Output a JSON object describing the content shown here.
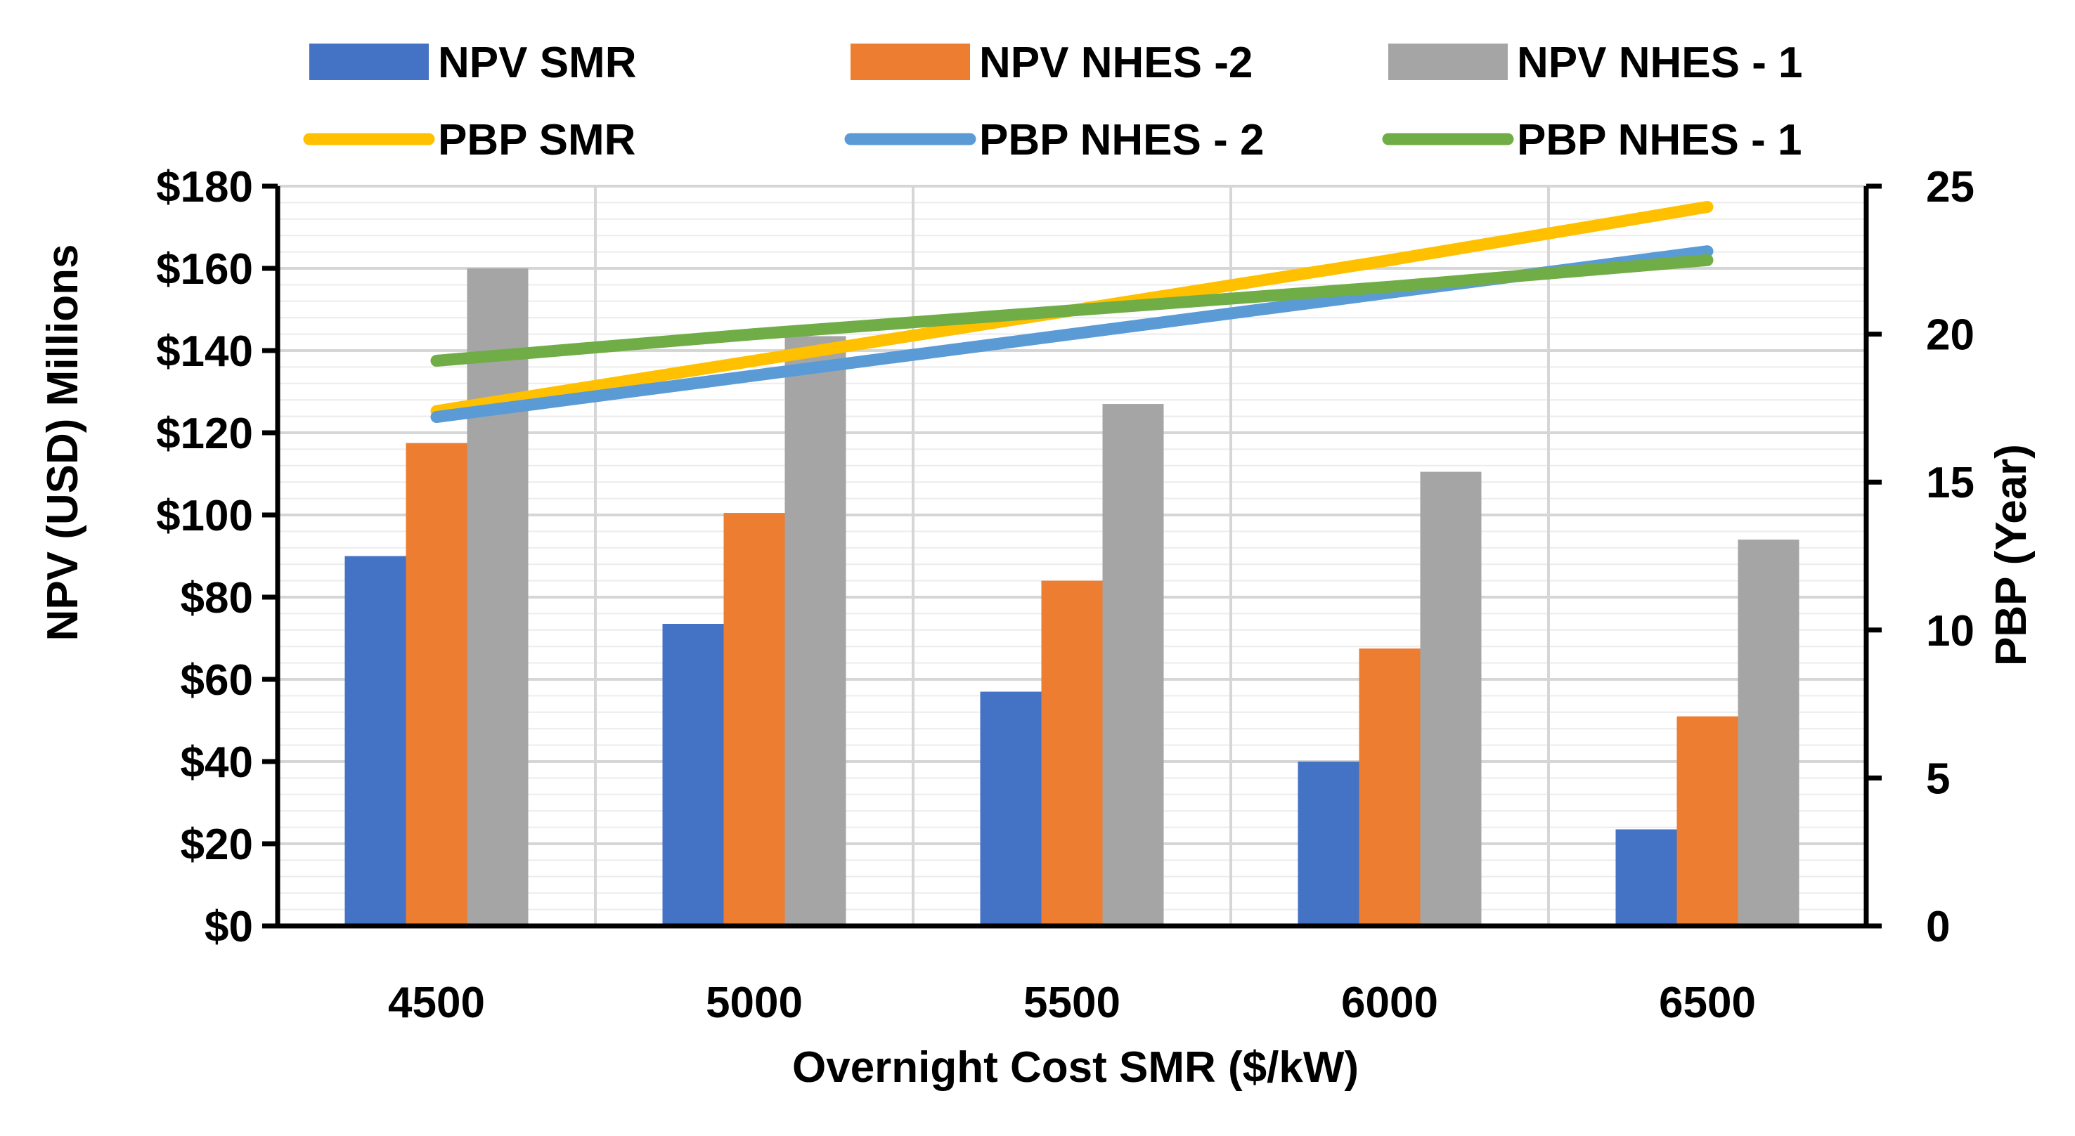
{
  "chart_data": {
    "type": "bar",
    "title": "",
    "xlabel": "Overnight Cost SMR ($/kW)",
    "ylabel": "NPV (USD)  Millions",
    "y2label": "PBP (Year)",
    "categories": [
      "4500",
      "5000",
      "5500",
      "6000",
      "6500"
    ],
    "ylim": [
      0,
      180
    ],
    "y2lim": [
      0,
      25
    ],
    "yticks": [
      "$0",
      "$20",
      "$40",
      "$60",
      "$80",
      "$100",
      "$120",
      "$140",
      "$160",
      "$180"
    ],
    "y2ticks": [
      "0",
      "5",
      "10",
      "15",
      "20",
      "25"
    ],
    "grid": true,
    "legend_position": "top",
    "series": [
      {
        "name": "NPV SMR",
        "type": "bar",
        "axis": "left",
        "color": "#4472C4",
        "values": [
          90,
          73.5,
          57,
          40,
          23.5
        ]
      },
      {
        "name": "NPV NHES -2",
        "type": "bar",
        "axis": "left",
        "color": "#ED7D31",
        "values": [
          117.5,
          100.5,
          84,
          67.5,
          51
        ]
      },
      {
        "name": "NPV NHES - 1",
        "type": "bar",
        "axis": "left",
        "color": "#A5A5A5",
        "values": [
          160,
          143.5,
          127,
          110.5,
          94
        ]
      },
      {
        "name": "PBP SMR",
        "type": "line",
        "axis": "right",
        "color": "#FFC000",
        "values": [
          17.4,
          19.1,
          20.8,
          22.5,
          24.3
        ]
      },
      {
        "name": "PBP NHES - 2",
        "type": "line",
        "axis": "right",
        "color": "#5B9BD5",
        "values": [
          17.2,
          18.6,
          20.0,
          21.4,
          22.8
        ]
      },
      {
        "name": "PBP NHES - 1",
        "type": "line",
        "axis": "right",
        "color": "#70AD47",
        "values": [
          19.1,
          20.0,
          20.8,
          21.6,
          22.5
        ]
      }
    ]
  }
}
